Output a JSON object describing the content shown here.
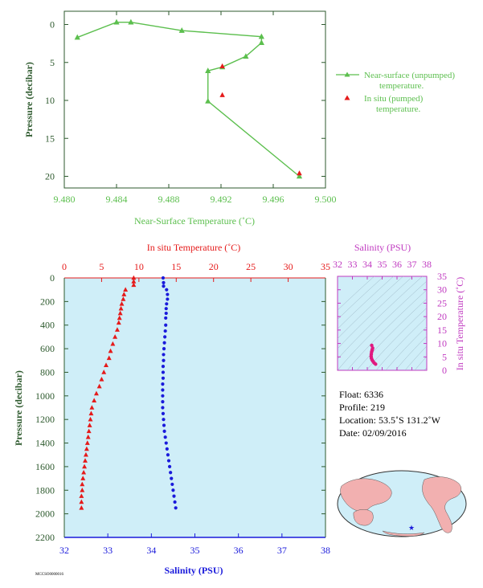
{
  "chart_data": [
    {
      "type": "line",
      "ylabel": "Pressure (decibar)",
      "xlabel": "Near-Surface Temperature (˚C)",
      "xlim": [
        9.48,
        9.5
      ],
      "ylim": [
        0,
        22
      ],
      "xticks": [
        "9.480",
        "9.484",
        "9.488",
        "9.492",
        "9.496",
        "9.500"
      ],
      "yticks": [
        "0",
        "5",
        "10",
        "15",
        "20"
      ],
      "colors": {
        "axis": "#2e5a2e",
        "unpumped": "#5cbf4e",
        "pumped": "#e51a1a"
      },
      "series": [
        {
          "name": "Near-surface (unpumped) temperature.",
          "legend_lines": [
            "Near-surface (unpumped)",
            "temperature."
          ],
          "points": [
            [
              9.481,
              1.7
            ],
            [
              9.484,
              -0.3
            ],
            [
              9.4851,
              -0.3
            ],
            [
              9.489,
              0.8
            ],
            [
              9.4951,
              1.6
            ],
            [
              9.4951,
              2.4
            ],
            [
              9.4939,
              4.2
            ],
            [
              9.4921,
              5.6
            ],
            [
              9.491,
              6.1
            ],
            [
              9.491,
              10.1
            ],
            [
              9.498,
              20.0
            ]
          ]
        },
        {
          "name": "In situ (pumped) temperature.",
          "legend_lines": [
            "In situ (pumped)",
            "temperature."
          ],
          "points": [
            [
              9.4921,
              5.5
            ],
            [
              9.4921,
              9.3
            ],
            [
              9.498,
              19.6
            ]
          ]
        }
      ]
    },
    {
      "type": "scatter",
      "ylabel": "Pressure (decibar)",
      "x_top_label": "In situ Temperature (˚C)",
      "x_bottom_label": "Salinity (PSU)",
      "temp_xlim": [
        0,
        35
      ],
      "sal_xlim": [
        32,
        38
      ],
      "ylim": [
        0,
        2200
      ],
      "temp_ticks": [
        "0",
        "5",
        "10",
        "15",
        "20",
        "25",
        "30",
        "35"
      ],
      "sal_ticks": [
        "32",
        "33",
        "34",
        "35",
        "36",
        "37",
        "38"
      ],
      "yticks": [
        "0",
        "200",
        "400",
        "600",
        "800",
        "1000",
        "1200",
        "1400",
        "1600",
        "1800",
        "2000",
        "2200"
      ],
      "colors": {
        "temperature": "#e51a1a",
        "salinity": "#1a1adb",
        "background": "#cfeef8"
      },
      "temperature_profile": [
        [
          9.3,
          0
        ],
        [
          9.3,
          30
        ],
        [
          9.3,
          60
        ],
        [
          8.2,
          100
        ],
        [
          8.0,
          140
        ],
        [
          7.9,
          180
        ],
        [
          7.7,
          220
        ],
        [
          7.6,
          260
        ],
        [
          7.5,
          300
        ],
        [
          7.4,
          340
        ],
        [
          7.3,
          380
        ],
        [
          7.1,
          440
        ],
        [
          6.8,
          500
        ],
        [
          6.5,
          560
        ],
        [
          6.2,
          620
        ],
        [
          6.0,
          680
        ],
        [
          5.6,
          740
        ],
        [
          5.3,
          800
        ],
        [
          5.0,
          860
        ],
        [
          4.7,
          920
        ],
        [
          4.3,
          980
        ],
        [
          4.0,
          1040
        ],
        [
          3.7,
          1100
        ],
        [
          3.6,
          1150
        ],
        [
          3.5,
          1200
        ],
        [
          3.4,
          1250
        ],
        [
          3.3,
          1300
        ],
        [
          3.2,
          1350
        ],
        [
          3.1,
          1400
        ],
        [
          3.0,
          1450
        ],
        [
          2.9,
          1500
        ],
        [
          2.8,
          1550
        ],
        [
          2.7,
          1600
        ],
        [
          2.6,
          1650
        ],
        [
          2.5,
          1700
        ],
        [
          2.4,
          1750
        ],
        [
          2.4,
          1800
        ],
        [
          2.3,
          1850
        ],
        [
          2.3,
          1900
        ],
        [
          2.3,
          1950
        ]
      ],
      "salinity_profile": [
        [
          34.27,
          0
        ],
        [
          34.28,
          40
        ],
        [
          34.28,
          70
        ],
        [
          34.35,
          100
        ],
        [
          34.37,
          140
        ],
        [
          34.37,
          180
        ],
        [
          34.35,
          220
        ],
        [
          34.34,
          260
        ],
        [
          34.34,
          300
        ],
        [
          34.33,
          340
        ],
        [
          34.33,
          400
        ],
        [
          34.32,
          450
        ],
        [
          34.31,
          500
        ],
        [
          34.3,
          550
        ],
        [
          34.29,
          600
        ],
        [
          34.28,
          650
        ],
        [
          34.28,
          700
        ],
        [
          34.27,
          750
        ],
        [
          34.27,
          800
        ],
        [
          34.27,
          850
        ],
        [
          34.26,
          900
        ],
        [
          34.26,
          950
        ],
        [
          34.26,
          1000
        ],
        [
          34.26,
          1050
        ],
        [
          34.26,
          1100
        ],
        [
          34.27,
          1150
        ],
        [
          34.28,
          1200
        ],
        [
          34.29,
          1250
        ],
        [
          34.3,
          1300
        ],
        [
          34.32,
          1350
        ],
        [
          34.34,
          1400
        ],
        [
          34.36,
          1450
        ],
        [
          34.38,
          1500
        ],
        [
          34.4,
          1550
        ],
        [
          34.42,
          1600
        ],
        [
          34.44,
          1650
        ],
        [
          34.46,
          1700
        ],
        [
          34.48,
          1750
        ],
        [
          34.5,
          1800
        ],
        [
          34.52,
          1850
        ],
        [
          34.54,
          1900
        ],
        [
          34.56,
          1950
        ]
      ]
    },
    {
      "type": "scatter",
      "title": "Salinity (PSU)",
      "ylabel": "In situ Temperature (˚C)",
      "xlim": [
        32,
        38
      ],
      "ylim": [
        0,
        35
      ],
      "xticks": [
        "32",
        "33",
        "34",
        "35",
        "36",
        "37",
        "38"
      ],
      "yticks": [
        "0",
        "5",
        "10",
        "15",
        "20",
        "25",
        "30",
        "35"
      ],
      "colors": {
        "axis": "#c03ac0",
        "points": "#e01a80",
        "background": "#cfeef8"
      },
      "points": [
        [
          34.56,
          2.3
        ],
        [
          34.46,
          2.8
        ],
        [
          34.38,
          3.4
        ],
        [
          34.32,
          3.9
        ],
        [
          34.28,
          4.5
        ],
        [
          34.26,
          5.2
        ],
        [
          34.27,
          6.0
        ],
        [
          34.29,
          6.8
        ],
        [
          34.32,
          7.4
        ],
        [
          34.34,
          7.8
        ],
        [
          34.36,
          8.3
        ],
        [
          34.3,
          9.3
        ]
      ]
    }
  ],
  "info": {
    "float": "Float:  6336",
    "profile": "Profile:  219",
    "location": "Location:  53.5˚S  131.2˚W",
    "date": "Date:  02/09/2016"
  },
  "footer_code": "MCCSO0000016"
}
